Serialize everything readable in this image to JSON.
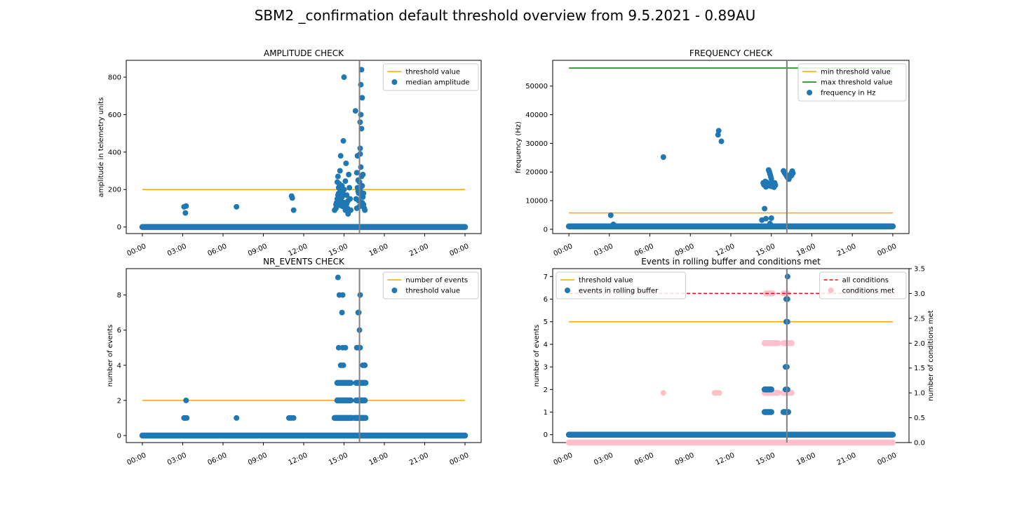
{
  "figure": {
    "suptitle": "SBM2 _confirmation default threshold overview from 9.5.2021 - 0.89AU"
  },
  "colors": {
    "blue": "#1f77b4",
    "orange": "#ffa500",
    "green": "#008000",
    "red": "#ff0000",
    "pink": "#ffc0cb",
    "vline": "#808080"
  },
  "time_axis": {
    "labels": [
      "00:00",
      "03:00",
      "06:00",
      "09:00",
      "12:00",
      "15:00",
      "18:00",
      "21:00",
      "00:00"
    ],
    "hours": [
      0,
      3,
      6,
      9,
      12,
      15,
      18,
      21,
      24
    ],
    "range_hours": [
      -1.2,
      25.2
    ],
    "marker_hour": 16.15
  },
  "chart_data": [
    {
      "id": "amp",
      "type": "scatter",
      "title": "AMPLITUDE CHECK",
      "ylabel": "amplitude in telemetry units",
      "ylim": [
        -35,
        890
      ],
      "yticks": [
        0,
        200,
        400,
        600,
        800
      ],
      "legend": {
        "position": "top-right",
        "entries": [
          {
            "label": "threshold value",
            "kind": "line",
            "color": "orange"
          },
          {
            "label": "median amplitude",
            "kind": "dot",
            "color": "blue"
          }
        ]
      },
      "threshold": 200,
      "baseline": 0,
      "points": [
        [
          3.1,
          108
        ],
        [
          3.25,
          112
        ],
        [
          3.2,
          75
        ],
        [
          7,
          108
        ],
        [
          11.1,
          165
        ],
        [
          11.15,
          155
        ],
        [
          11.25,
          90
        ],
        [
          14.3,
          90
        ],
        [
          14.4,
          100
        ],
        [
          14.45,
          130
        ],
        [
          14.5,
          150
        ],
        [
          14.55,
          170
        ],
        [
          14.6,
          180
        ],
        [
          14.5,
          240
        ],
        [
          14.55,
          270
        ],
        [
          14.6,
          210
        ],
        [
          14.65,
          120
        ],
        [
          14.7,
          200
        ],
        [
          14.7,
          300
        ],
        [
          14.75,
          380
        ],
        [
          14.8,
          140
        ],
        [
          14.85,
          220
        ],
        [
          14.9,
          180
        ],
        [
          14.9,
          110
        ],
        [
          14.95,
          460
        ],
        [
          15.0,
          800
        ],
        [
          15.05,
          130
        ],
        [
          15.1,
          90
        ],
        [
          15.15,
          340
        ],
        [
          15.2,
          170
        ],
        [
          15.25,
          100
        ],
        [
          15.3,
          70
        ],
        [
          15.35,
          280
        ],
        [
          15.4,
          210
        ],
        [
          15.45,
          150
        ],
        [
          15.5,
          90
        ],
        [
          14.75,
          115
        ],
        [
          14.85,
          160
        ],
        [
          15.0,
          200
        ],
        [
          15.1,
          245
        ],
        [
          15.2,
          125
        ],
        [
          14.4,
          120
        ],
        [
          14.65,
          230
        ],
        [
          15.3,
          140
        ],
        [
          15.85,
          620
        ],
        [
          15.95,
          290
        ],
        [
          16.0,
          380
        ],
        [
          16.05,
          250
        ],
        [
          16.1,
          180
        ],
        [
          16.15,
          110
        ],
        [
          16.2,
          420
        ],
        [
          16.2,
          560
        ],
        [
          16.25,
          760
        ],
        [
          16.25,
          600
        ],
        [
          16.3,
          840
        ],
        [
          16.3,
          525
        ],
        [
          16.35,
          690
        ],
        [
          16.2,
          390
        ],
        [
          16.25,
          320
        ],
        [
          16.3,
          270
        ],
        [
          16.35,
          220
        ],
        [
          16.4,
          160
        ],
        [
          16.45,
          120
        ],
        [
          16.5,
          100
        ],
        [
          16.55,
          90
        ],
        [
          16.15,
          240
        ],
        [
          16.1,
          140
        ],
        [
          16.05,
          190
        ],
        [
          15.95,
          100
        ],
        [
          16.4,
          280
        ],
        [
          16.2,
          200
        ],
        [
          16.3,
          170
        ],
        [
          16.45,
          180
        ],
        [
          16.35,
          130
        ],
        [
          15.9,
          150
        ],
        [
          16.0,
          210
        ]
      ]
    },
    {
      "id": "freq",
      "type": "scatter",
      "title": "FREQUENCY CHECK",
      "ylabel": "frequency (Hz)",
      "ylim": [
        -1500,
        59000
      ],
      "yticks": [
        0,
        10000,
        20000,
        30000,
        40000,
        50000
      ],
      "legend": {
        "position": "top-right",
        "entries": [
          {
            "label": "min threshold value",
            "kind": "line",
            "color": "orange"
          },
          {
            "label": "max threshold value",
            "kind": "line",
            "color": "green"
          },
          {
            "label": "frequency in Hz",
            "kind": "dot",
            "color": "blue"
          }
        ]
      },
      "thresholds": [
        5700,
        56300
      ],
      "baseline": 1000,
      "points": [
        [
          3.1,
          4900
        ],
        [
          3.3,
          1700
        ],
        [
          7,
          25200
        ],
        [
          11.1,
          34400
        ],
        [
          11.05,
          33000
        ],
        [
          11.3,
          30700
        ],
        [
          14.3,
          3200
        ],
        [
          14.5,
          7200
        ],
        [
          14.6,
          3700
        ],
        [
          14.9,
          2000
        ],
        [
          15.0,
          3900
        ],
        [
          14.4,
          16200
        ],
        [
          14.5,
          15800
        ],
        [
          14.55,
          16700
        ],
        [
          14.6,
          14800
        ],
        [
          14.7,
          15300
        ],
        [
          14.75,
          16000
        ],
        [
          14.8,
          20700
        ],
        [
          14.85,
          20100
        ],
        [
          14.9,
          19300
        ],
        [
          14.95,
          18500
        ],
        [
          15.0,
          17600
        ],
        [
          15.05,
          16400
        ],
        [
          15.1,
          15800
        ],
        [
          15.15,
          15100
        ],
        [
          15.2,
          14700
        ],
        [
          15.25,
          16200
        ],
        [
          15.3,
          15400
        ],
        [
          14.65,
          16400
        ],
        [
          14.85,
          15200
        ],
        [
          15.0,
          15000
        ],
        [
          14.45,
          15500
        ],
        [
          15.9,
          20400
        ],
        [
          15.95,
          20000
        ],
        [
          16.0,
          19600
        ],
        [
          16.05,
          19300
        ],
        [
          16.1,
          18900
        ],
        [
          16.15,
          18500
        ],
        [
          16.2,
          18100
        ],
        [
          16.25,
          17800
        ],
        [
          16.3,
          17500
        ],
        [
          16.35,
          18200
        ],
        [
          16.4,
          18800
        ],
        [
          16.45,
          19300
        ],
        [
          16.5,
          19800
        ],
        [
          16.55,
          20300
        ],
        [
          16.6,
          19600
        ],
        [
          16.5,
          18800
        ]
      ]
    },
    {
      "id": "nr",
      "type": "scatter",
      "title": "NR_EVENTS CHECK",
      "ylabel": "number of events",
      "ylim": [
        -0.4,
        9.5
      ],
      "yticks": [
        0,
        2,
        4,
        6,
        8
      ],
      "legend": {
        "position": "top-right",
        "entries": [
          {
            "label": "number of events",
            "kind": "line",
            "color": "orange"
          },
          {
            "label": "threshold value",
            "kind": "dot",
            "color": "blue"
          }
        ]
      },
      "threshold": 2,
      "baseline": 0,
      "points": [
        [
          3.1,
          1
        ],
        [
          3.15,
          1
        ],
        [
          3.2,
          1
        ],
        [
          3.3,
          1
        ],
        [
          3.25,
          2
        ],
        [
          7,
          1
        ],
        [
          10.9,
          1
        ],
        [
          11.0,
          1
        ],
        [
          11.1,
          1
        ],
        [
          11.25,
          1
        ],
        [
          14.55,
          9
        ],
        [
          14.65,
          8
        ],
        [
          14.9,
          8
        ],
        [
          14.85,
          7
        ],
        [
          14.6,
          5
        ],
        [
          14.9,
          5
        ],
        [
          15.1,
          5
        ],
        [
          14.75,
          4
        ],
        [
          14.85,
          4
        ],
        [
          14.95,
          4
        ],
        [
          16.2,
          8
        ],
        [
          16.05,
          7
        ],
        [
          16.1,
          7
        ],
        [
          16.15,
          6
        ],
        [
          15.95,
          5
        ],
        [
          16.1,
          5
        ],
        [
          16.2,
          5
        ],
        [
          16.4,
          4
        ],
        [
          16.5,
          4
        ],
        [
          16.55,
          4
        ]
      ],
      "runs": [
        {
          "y": 3,
          "from": 14.5,
          "to": 15.5
        },
        {
          "y": 2,
          "from": 14.5,
          "to": 15.5
        },
        {
          "y": 1,
          "from": 14.3,
          "to": 15.6
        },
        {
          "y": 3,
          "from": 15.9,
          "to": 16.6
        },
        {
          "y": 2,
          "from": 15.9,
          "to": 16.55
        },
        {
          "y": 1,
          "from": 15.8,
          "to": 16.6
        }
      ]
    },
    {
      "id": "roll",
      "type": "scatter",
      "title": "Events in rolling buffer and conditions met",
      "ylabel": "number of events",
      "ylabel2": "number of conditions met",
      "ylim": [
        -0.35,
        7.35
      ],
      "y2lim": [
        0,
        3.5
      ],
      "yticks": [
        0,
        1,
        2,
        3,
        4,
        5,
        6,
        7
      ],
      "y2ticks": [
        0.0,
        0.5,
        1.0,
        1.5,
        2.0,
        2.5,
        3.0,
        3.5
      ],
      "y2ticklabels": [
        "0.0",
        "0.5",
        "1.0",
        "1.5",
        "2.0",
        "2.5",
        "3.0",
        "3.5"
      ],
      "legend_left": {
        "position": "top-left",
        "entries": [
          {
            "label": "threshold value",
            "kind": "line",
            "color": "orange"
          },
          {
            "label": "events in rolling buffer",
            "kind": "dot",
            "color": "blue"
          }
        ]
      },
      "legend_right": {
        "position": "top-right",
        "entries": [
          {
            "label": "all conditions",
            "kind": "dash",
            "color": "red"
          },
          {
            "label": "conditions met",
            "kind": "dot",
            "color": "pink"
          }
        ]
      },
      "threshold": 5,
      "all_conditions": 3,
      "baseline": 0,
      "pink_points": [
        [
          7,
          1
        ],
        [
          10.8,
          1
        ],
        [
          10.9,
          1
        ],
        [
          11.0,
          1
        ],
        [
          11.15,
          1
        ]
      ],
      "pink_runs": [
        {
          "y": 3,
          "from": 14.6,
          "to": 15.1
        },
        {
          "y": 2,
          "from": 14.5,
          "to": 15.5
        },
        {
          "y": 1,
          "from": 14.5,
          "to": 15.5
        },
        {
          "y": 3,
          "from": 15.9,
          "to": 16.2
        },
        {
          "y": 2,
          "from": 15.9,
          "to": 16.5
        },
        {
          "y": 1,
          "from": 15.9,
          "to": 16.5
        }
      ],
      "blue_points": [
        [
          16.2,
          7
        ],
        [
          16.1,
          6
        ],
        [
          16.2,
          6
        ],
        [
          16.1,
          5
        ],
        [
          16.2,
          5
        ],
        [
          16.05,
          3
        ],
        [
          16.15,
          3
        ],
        [
          16.05,
          2
        ],
        [
          16.2,
          2
        ]
      ],
      "blue_runs": [
        {
          "y": 2,
          "from": 14.5,
          "to": 15.0
        },
        {
          "y": 1,
          "from": 14.5,
          "to": 15.0
        },
        {
          "y": 1,
          "from": 15.9,
          "to": 16.25
        }
      ]
    }
  ]
}
